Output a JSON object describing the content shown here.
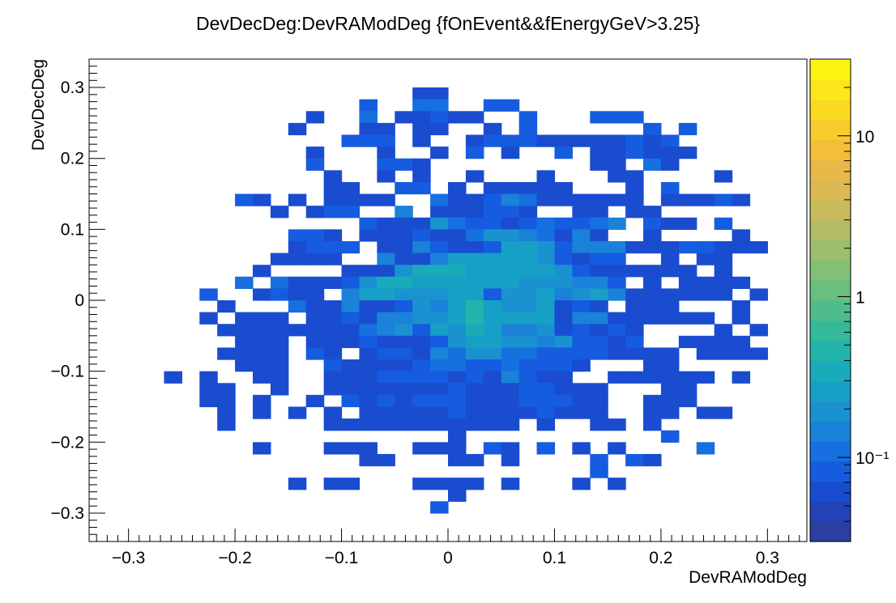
{
  "chart_data": {
    "type": "heatmap",
    "title": "DevDecDeg:DevRAModDeg {fOnEvent&&fEnergyGeV>3.25}",
    "xlabel": "DevRAModDeg",
    "ylabel": "DevDecDeg",
    "xlim": [
      -0.337,
      0.337
    ],
    "ylim": [
      -0.34,
      0.34
    ],
    "x_ticks": [
      {
        "value": -0.3,
        "label": "−0.3"
      },
      {
        "value": -0.2,
        "label": "−0.2"
      },
      {
        "value": -0.1,
        "label": "−0.1"
      },
      {
        "value": 0,
        "label": "0"
      },
      {
        "value": 0.1,
        "label": "0.1"
      },
      {
        "value": 0.2,
        "label": "0.2"
      },
      {
        "value": 0.3,
        "label": "0.3"
      }
    ],
    "y_ticks": [
      {
        "value": 0.3,
        "label": "0.3"
      },
      {
        "value": 0.2,
        "label": "0.2"
      },
      {
        "value": 0.1,
        "label": "0.1"
      },
      {
        "value": 0,
        "label": "0"
      },
      {
        "value": -0.1,
        "label": "−0.1"
      },
      {
        "value": -0.2,
        "label": "−0.2"
      },
      {
        "value": -0.3,
        "label": "−0.3"
      }
    ],
    "z_log": true,
    "zlim": [
      0.03,
      30
    ],
    "z_ticks": [
      {
        "value": 10,
        "label": "10"
      },
      {
        "value": 1,
        "label": "1"
      },
      {
        "value": 0.1,
        "label": "10⁻¹"
      }
    ],
    "palette": [
      "#2a3fa0",
      "#2242b8",
      "#1a4cd0",
      "#155ce0",
      "#1670e0",
      "#1a82d8",
      "#1a92d0",
      "#17a0c6",
      "#18acba",
      "#22b4aa",
      "#36b89a",
      "#4fbc8c",
      "#68bf80",
      "#82c077",
      "#9cbf6e",
      "#b2bd66",
      "#c8bb5c",
      "#dab952",
      "#e8b946",
      "#f3bf38",
      "#f8cc2c",
      "#fbda22",
      "#fce81a",
      "#fcf514"
    ],
    "bins": {
      "nx": 36,
      "ny": 36,
      "x_min": -0.3,
      "x_max": 0.3,
      "y_min": -0.3,
      "y_max": 0.3,
      "rows_top_to_bottom": [
        "................cc..................",
        ".............d..ee..dd..............",
        "..........c..e.ccdcc..d...ddd.......",
        ".........c...cc.cc..c.d......d.d....",
        "............ddd.c..cdddcccccdcd.....",
        "..........c...c..c.d.c..d.ccdccc....",
        "..........d...ddc.........cc.ec.....",
        "...........c..c.c..c...c...cc....c..",
        "...........cc..dd.c.ccccc...c.d.....",
        "......dc.c.cccc..eccdfecccccc.cccdc.",
        "........c.cdd..f.cccddc..cc.cc......",
        ".............dcccgeddcdeddef.dcc.d..",
        ".........ddc.cccdcceggfecfc..c....c.",
        ".........cddd.ccfdccdhhgdfffcccddccc",
        "........cccc..fccfhhhhhgdcdd..c.cc..",
        ".......c....cccgiiihhhhhgdcccccc.c..",
        "......e.ecccdgiihhhhhhgggffd.c.cccc.",
        "....d..cdcc.fhhggghhdgghfghfcccccc.c",
        ".....c...eccfccdgfhjhgghcdc.ccc...c.",
        "....c.ccc.ccdcffgghjhhhhcffcccccc.c.",
        ".....ccccccccefgdhgihffgcdcdc....c.c",
        "......ccc.cccdcccdghhggfgddcd..cccc.",
        ".....cccc.dc.cddcfeggeeddddcccc.cccc",
        "......ccc..dccccdeeddedddc...cc.....",
        "..c.c..cc..cccddddcdcfdcc..cccccc.c.",
        "....cc..c..cccccccdcccddccc...cc....",
        "....cc.c..c.dcdcdddcccdddcc..ccc....",
        ".....c.c.c.c.cccccdccccdccc..cc.cc..",
        ".....c.....ccccccccccc.c..cc.c......",
        "..................c...........d.....",
        ".......c...ccc..ccc.dc.d.c.c....e...",
        ".............cc...cc.c....d.dc......",
        "..........................d.........",
        ".........c.cc...cccc.c...c.c........",
        "..................c.................",
        ".................d.................."
      ]
    }
  }
}
